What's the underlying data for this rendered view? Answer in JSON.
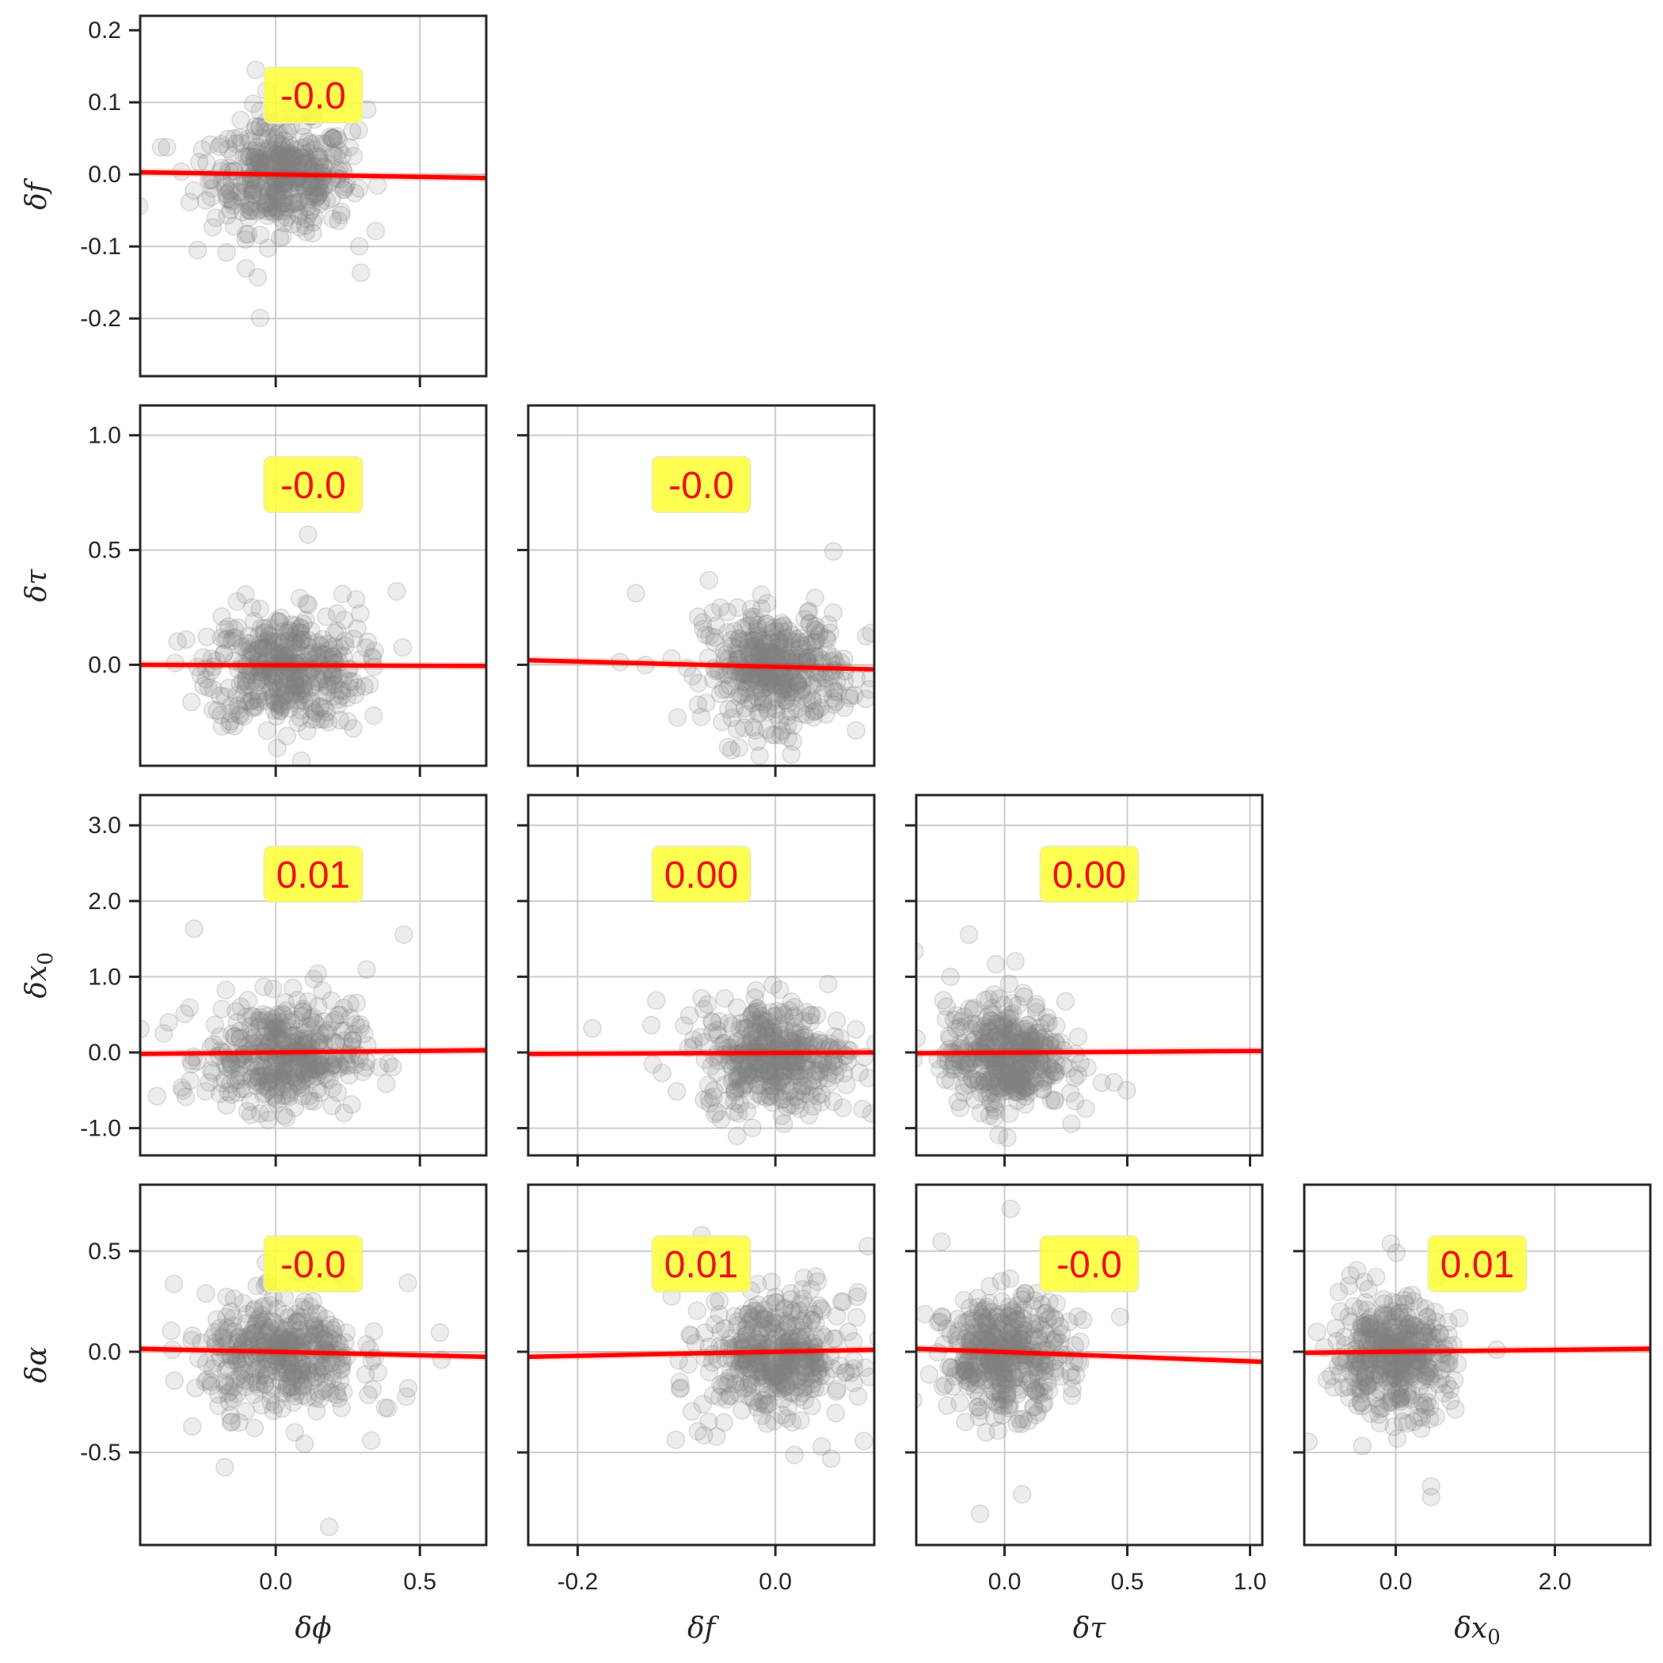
{
  "chart_data": {
    "type": "scatter",
    "layout": "pairplot-lower-triangle",
    "variables": [
      "δϕ",
      "δf",
      "δτ",
      "δx0"
    ],
    "row_variables": [
      "δf",
      "δτ",
      "δx0",
      "δα"
    ],
    "column_axes": [
      {
        "label": "δϕ",
        "xlim": [
          -0.47,
          0.73
        ],
        "ticks": [
          0.0,
          0.5
        ],
        "tick_labels": [
          "0.0",
          "0.5"
        ],
        "grid": [
          0.0,
          0.5
        ]
      },
      {
        "label": "δf",
        "xlim": [
          -0.25,
          0.1
        ],
        "ticks": [
          -0.2,
          0.0
        ],
        "tick_labels": [
          "-0.2",
          "0.0"
        ],
        "grid": [
          -0.2,
          0.0
        ]
      },
      {
        "label": "δτ",
        "xlim": [
          -0.36,
          1.05
        ],
        "ticks": [
          0.0,
          0.5,
          1.0
        ],
        "tick_labels": [
          "0.0",
          "0.5",
          "1.0"
        ],
        "grid": [
          0.0,
          0.5,
          1.0
        ]
      },
      {
        "label": "δx0",
        "xlim": [
          -1.15,
          3.2
        ],
        "ticks": [
          0.0,
          2.0
        ],
        "tick_labels": [
          "0.0",
          "2.0"
        ],
        "grid": [
          0.0,
          2.0
        ]
      }
    ],
    "row_axes": [
      {
        "label": "δf",
        "ylim": [
          -0.28,
          0.22
        ],
        "ticks": [
          0.2,
          0.1,
          0.0,
          -0.1,
          -0.2
        ],
        "tick_labels": [
          "0.2",
          "0.1",
          "0.0",
          "-0.1",
          "-0.2"
        ],
        "grid": [
          0.1,
          0.0,
          -0.1,
          -0.2
        ]
      },
      {
        "label": "δτ",
        "ylim": [
          -0.44,
          1.13
        ],
        "ticks": [
          1.0,
          0.5,
          0.0
        ],
        "tick_labels": [
          "1.0",
          "0.5",
          "0.0"
        ],
        "grid": [
          1.0,
          0.5,
          0.0
        ]
      },
      {
        "label": "δx0",
        "ylim": [
          -1.36,
          3.4
        ],
        "ticks": [
          3.0,
          2.0,
          1.0,
          0.0,
          -1.0
        ],
        "tick_labels": [
          "3.0",
          "2.0",
          "1.0",
          "0.0",
          "-1.0"
        ],
        "grid": [
          3.0,
          2.0,
          1.0,
          0.0,
          -1.0
        ]
      },
      {
        "label": "δα",
        "ylim": [
          -0.96,
          0.83
        ],
        "ticks": [
          0.5,
          0.0,
          -0.5
        ],
        "tick_labels": [
          "0.5",
          "0.0",
          "-0.5"
        ],
        "grid": [
          0.5,
          0.0,
          -0.5
        ]
      }
    ],
    "panels": [
      {
        "row": 0,
        "col": 0,
        "x": "δϕ",
        "y": "δf",
        "correlation": "-0.0",
        "regression": {
          "x": [
            -0.47,
            0.73
          ],
          "y": [
            0.003,
            -0.005
          ]
        },
        "cloud": {
          "cx": 0.02,
          "cy": -0.005,
          "sx": 0.12,
          "sy": 0.037
        }
      },
      {
        "row": 1,
        "col": 0,
        "x": "δϕ",
        "y": "δτ",
        "correlation": "-0.0",
        "regression": {
          "x": [
            -0.47,
            0.73
          ],
          "y": [
            0.0,
            -0.005
          ]
        },
        "cloud": {
          "cx": 0.03,
          "cy": -0.02,
          "sx": 0.13,
          "sy": 0.12
        }
      },
      {
        "row": 1,
        "col": 1,
        "x": "δf",
        "y": "δτ",
        "correlation": "-0.0",
        "regression": {
          "x": [
            -0.25,
            0.1
          ],
          "y": [
            0.02,
            -0.02
          ]
        },
        "cloud": {
          "cx": 0.0,
          "cy": -0.02,
          "sx": 0.035,
          "sy": 0.12
        }
      },
      {
        "row": 2,
        "col": 0,
        "x": "δϕ",
        "y": "δx0",
        "correlation": "0.01",
        "regression": {
          "x": [
            -0.47,
            0.73
          ],
          "y": [
            -0.02,
            0.03
          ]
        },
        "cloud": {
          "cx": 0.02,
          "cy": -0.05,
          "sx": 0.13,
          "sy": 0.35
        }
      },
      {
        "row": 2,
        "col": 1,
        "x": "δf",
        "y": "δx0",
        "correlation": "0.00",
        "regression": {
          "x": [
            -0.25,
            0.1
          ],
          "y": [
            -0.02,
            0.0
          ]
        },
        "cloud": {
          "cx": -0.002,
          "cy": -0.05,
          "sx": 0.035,
          "sy": 0.35
        }
      },
      {
        "row": 2,
        "col": 2,
        "x": "δτ",
        "y": "δx0",
        "correlation": "0.00",
        "regression": {
          "x": [
            -0.36,
            1.05
          ],
          "y": [
            -0.01,
            0.02
          ]
        },
        "cloud": {
          "cx": 0.0,
          "cy": -0.05,
          "sx": 0.12,
          "sy": 0.35
        }
      },
      {
        "row": 3,
        "col": 0,
        "x": "δϕ",
        "y": "δα",
        "correlation": "-0.0",
        "regression": {
          "x": [
            -0.47,
            0.73
          ],
          "y": [
            0.015,
            -0.025
          ]
        },
        "cloud": {
          "cx": 0.02,
          "cy": -0.02,
          "sx": 0.13,
          "sy": 0.14
        }
      },
      {
        "row": 3,
        "col": 1,
        "x": "δf",
        "y": "δα",
        "correlation": "0.01",
        "regression": {
          "x": [
            -0.25,
            0.1
          ],
          "y": [
            -0.025,
            0.01
          ]
        },
        "cloud": {
          "cx": 0.0,
          "cy": -0.02,
          "sx": 0.035,
          "sy": 0.14
        }
      },
      {
        "row": 3,
        "col": 2,
        "x": "δτ",
        "y": "δα",
        "correlation": "-0.0",
        "regression": {
          "x": [
            -0.36,
            1.05
          ],
          "y": [
            0.015,
            -0.05
          ]
        },
        "cloud": {
          "cx": 0.0,
          "cy": -0.02,
          "sx": 0.12,
          "sy": 0.14
        }
      },
      {
        "row": 3,
        "col": 3,
        "x": "δx0",
        "y": "δα",
        "correlation": "0.01",
        "regression": {
          "x": [
            -1.15,
            3.2
          ],
          "y": [
            -0.005,
            0.015
          ]
        },
        "cloud": {
          "cx": -0.05,
          "cy": -0.02,
          "sx": 0.35,
          "sy": 0.14
        }
      }
    ],
    "style": {
      "point_color": "#7f7f7f",
      "regression_color": "#ff0000",
      "annotation_box_color": "#ffff33",
      "annotation_text_color": "#ee1111"
    },
    "grid": true
  }
}
